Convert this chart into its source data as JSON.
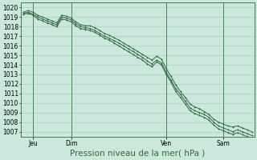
{
  "bg_color": "#cce8dc",
  "grid_color": "#99ccbb",
  "line_color": "#2d6b3c",
  "ylim": [
    1006.5,
    1020.5
  ],
  "yticks": [
    1007,
    1008,
    1009,
    1010,
    1011,
    1012,
    1013,
    1014,
    1015,
    1016,
    1017,
    1018,
    1019,
    1020
  ],
  "xlabel": "Pression niveau de la mer( hPa )",
  "xlabel_fontsize": 7.5,
  "tick_fontsize": 5.5,
  "xtick_labels": [
    "Jeu",
    "Dim",
    "Ven",
    "Sam"
  ],
  "xtick_positions": [
    2,
    10,
    30,
    42
  ],
  "vline_positions": [
    2,
    10,
    30,
    42
  ],
  "total_points": 49,
  "series1": [
    1019.5,
    1019.7,
    1019.5,
    1019.2,
    1019.0,
    1018.8,
    1018.6,
    1018.4,
    1019.2,
    1019.1,
    1018.9,
    1018.5,
    1018.2,
    1018.1,
    1018.1,
    1017.9,
    1017.6,
    1017.3,
    1017.1,
    1016.85,
    1016.6,
    1016.3,
    1016.0,
    1015.7,
    1015.4,
    1015.1,
    1014.8,
    1014.5,
    1014.9,
    1014.6,
    1013.6,
    1012.8,
    1011.9,
    1011.2,
    1010.6,
    1009.9,
    1009.6,
    1009.4,
    1009.1,
    1008.8,
    1008.3,
    1008.0,
    1007.8,
    1007.6,
    1007.5,
    1007.6,
    1007.4,
    1007.2,
    1007.0
  ],
  "series2": [
    1019.4,
    1019.5,
    1019.3,
    1019.0,
    1018.8,
    1018.6,
    1018.4,
    1018.2,
    1019.0,
    1018.9,
    1018.7,
    1018.3,
    1018.0,
    1017.9,
    1017.8,
    1017.6,
    1017.3,
    1017.0,
    1016.8,
    1016.55,
    1016.3,
    1016.0,
    1015.7,
    1015.4,
    1015.1,
    1014.8,
    1014.4,
    1014.1,
    1014.5,
    1014.2,
    1013.2,
    1012.4,
    1011.5,
    1010.9,
    1010.2,
    1009.5,
    1009.2,
    1009.0,
    1008.8,
    1008.5,
    1008.0,
    1007.6,
    1007.4,
    1007.2,
    1007.0,
    1007.2,
    1007.0,
    1006.8,
    1006.6
  ],
  "series3": [
    1019.3,
    1019.4,
    1019.2,
    1018.8,
    1018.6,
    1018.4,
    1018.2,
    1018.0,
    1018.8,
    1018.7,
    1018.5,
    1018.1,
    1017.8,
    1017.7,
    1017.6,
    1017.4,
    1017.1,
    1016.8,
    1016.6,
    1016.3,
    1016.0,
    1015.7,
    1015.4,
    1015.1,
    1014.8,
    1014.5,
    1014.1,
    1013.8,
    1014.3,
    1014.0,
    1013.0,
    1012.2,
    1011.2,
    1010.6,
    1009.9,
    1009.2,
    1008.9,
    1008.7,
    1008.5,
    1008.2,
    1007.7,
    1007.3,
    1007.1,
    1006.9,
    1006.7,
    1006.9,
    1006.7,
    1006.5,
    1006.3
  ]
}
